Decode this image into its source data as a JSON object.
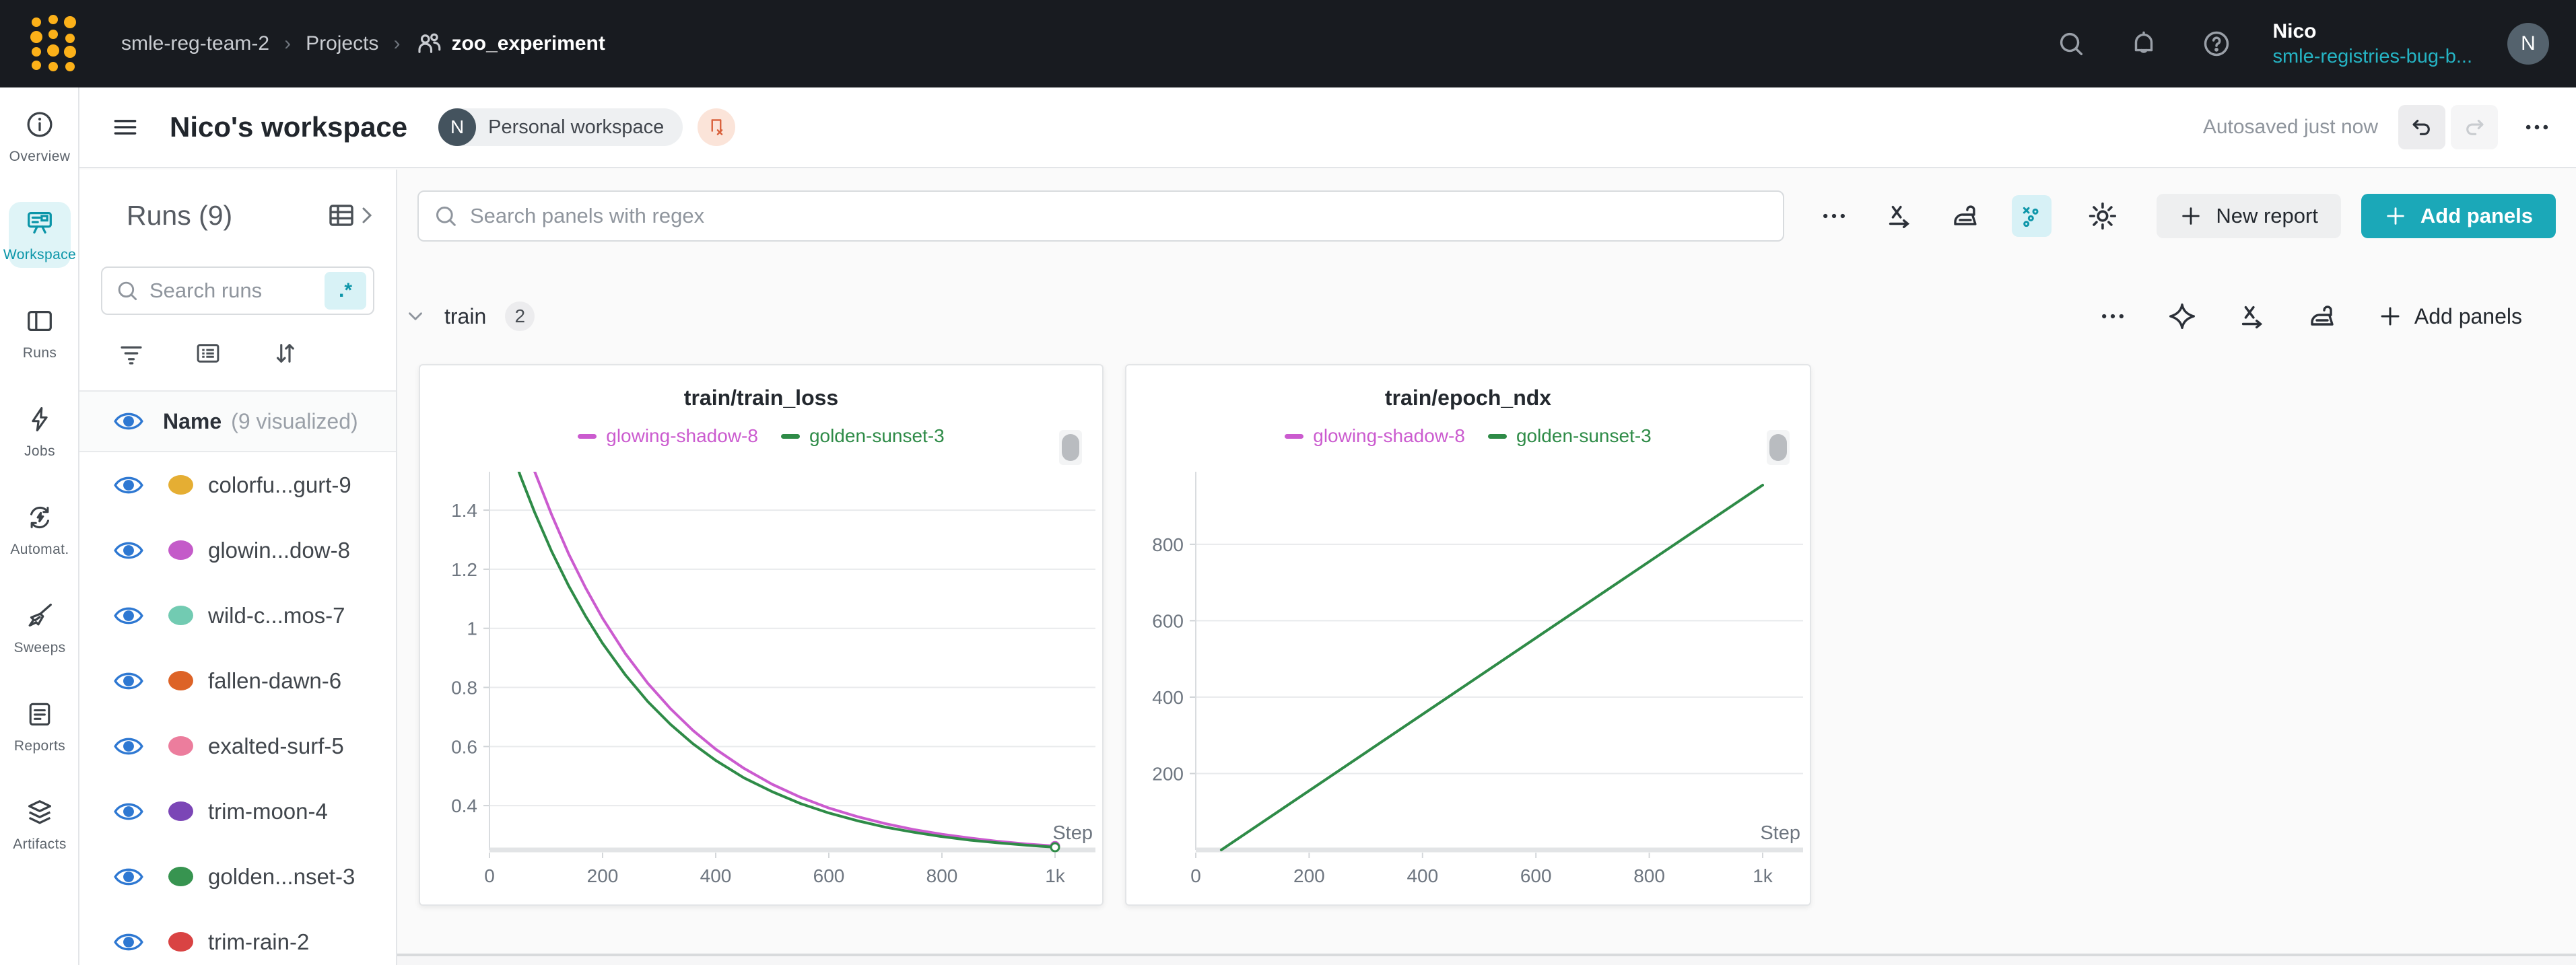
{
  "topbar": {
    "breadcrumb": [
      "smle-reg-team-2",
      "Projects",
      "zoo_experiment"
    ],
    "user_name": "Nico",
    "user_org": "smle-registries-bug-b...",
    "avatar_initial": "N"
  },
  "header": {
    "title": "Nico's workspace",
    "badge_initial": "N",
    "badge_label": "Personal workspace",
    "autosave_status": "Autosaved just now"
  },
  "nav": {
    "items": [
      {
        "key": "overview",
        "label": "Overview",
        "active": false
      },
      {
        "key": "workspace",
        "label": "Workspace",
        "active": true
      },
      {
        "key": "runs",
        "label": "Runs",
        "active": false
      },
      {
        "key": "jobs",
        "label": "Jobs",
        "active": false
      },
      {
        "key": "automations",
        "label": "Automat.",
        "active": false
      },
      {
        "key": "sweeps",
        "label": "Sweeps",
        "active": false
      },
      {
        "key": "reports",
        "label": "Reports",
        "active": false
      },
      {
        "key": "artifacts",
        "label": "Artifacts",
        "active": false
      }
    ]
  },
  "runs_panel": {
    "title": "Runs (9)",
    "search_placeholder": "Search runs",
    "regex_label": ".*",
    "header_name": "Name",
    "header_count": "(9 visualized)",
    "runs": [
      {
        "name": "colorfu...gurt-9",
        "color": "#e5ae33"
      },
      {
        "name": "glowin...dow-8",
        "color": "#c45bc9"
      },
      {
        "name": "wild-c...mos-7",
        "color": "#72cbb2"
      },
      {
        "name": "fallen-dawn-6",
        "color": "#dd6327"
      },
      {
        "name": "exalted-surf-5",
        "color": "#ec7d9d"
      },
      {
        "name": "trim-moon-4",
        "color": "#7b46b6"
      },
      {
        "name": "golden...nset-3",
        "color": "#379450"
      },
      {
        "name": "trim-rain-2",
        "color": "#d94343"
      }
    ]
  },
  "toolbar": {
    "search_placeholder": "Search panels with regex",
    "new_report_label": "New report",
    "add_panels_label": "Add panels"
  },
  "section": {
    "label": "train",
    "count": "2",
    "add_panels_label": "Add panels"
  },
  "panels": [
    {
      "title": "train/train_loss",
      "legend": [
        {
          "label": "glowing-shadow-8",
          "color": "#cb5bcf"
        },
        {
          "label": "golden-sunset-3",
          "color": "#2e8b47"
        }
      ]
    },
    {
      "title": "train/epoch_ndx",
      "legend": [
        {
          "label": "glowing-shadow-8",
          "color": "#cb5bcf"
        },
        {
          "label": "golden-sunset-3",
          "color": "#2e8b47"
        }
      ]
    }
  ],
  "chart_data": [
    {
      "type": "line",
      "title": "train/train_loss",
      "xlabel": "Step",
      "xlim": [
        0,
        1000
      ],
      "ylim": [
        0.25,
        1.53
      ],
      "x_ticks": [
        0,
        200,
        400,
        600,
        800,
        1000
      ],
      "x_tick_labels": [
        "0",
        "200",
        "400",
        "600",
        "800",
        "1k"
      ],
      "y_ticks": [
        0.4,
        0.6,
        0.8,
        1,
        1.2,
        1.4
      ],
      "y_tick_labels": [
        "0.4",
        "0.6",
        "0.8",
        "1",
        "1.2",
        "1.4"
      ],
      "grid": "horizontal",
      "legend_position": "top-center",
      "series": [
        {
          "name": "glowing-shadow-8",
          "color": "#cb5bcf",
          "end_marker": true,
          "points": [
            [
              30,
              1.817
            ],
            [
              55,
              1.666
            ],
            [
              80,
              1.53
            ],
            [
              110,
              1.384
            ],
            [
              140,
              1.252
            ],
            [
              170,
              1.137
            ],
            [
              200,
              1.034
            ],
            [
              240,
              0.915
            ],
            [
              280,
              0.814
            ],
            [
              320,
              0.728
            ],
            [
              360,
              0.654
            ],
            [
              400,
              0.591
            ],
            [
              450,
              0.526
            ],
            [
              500,
              0.472
            ],
            [
              550,
              0.428
            ],
            [
              600,
              0.392
            ],
            [
              650,
              0.363
            ],
            [
              700,
              0.339
            ],
            [
              750,
              0.319
            ],
            [
              800,
              0.303
            ],
            [
              850,
              0.29
            ],
            [
              900,
              0.279
            ],
            [
              950,
              0.27
            ],
            [
              1000,
              0.263
            ]
          ]
        },
        {
          "name": "golden-sunset-3",
          "color": "#2e8b47",
          "end_marker": true,
          "points": [
            [
              30,
              1.649
            ],
            [
              55,
              1.514
            ],
            [
              80,
              1.392
            ],
            [
              110,
              1.26
            ],
            [
              140,
              1.144
            ],
            [
              170,
              1.041
            ],
            [
              200,
              0.949
            ],
            [
              240,
              0.843
            ],
            [
              280,
              0.752
            ],
            [
              320,
              0.675
            ],
            [
              360,
              0.609
            ],
            [
              400,
              0.553
            ],
            [
              450,
              0.494
            ],
            [
              500,
              0.447
            ],
            [
              550,
              0.407
            ],
            [
              600,
              0.375
            ],
            [
              650,
              0.349
            ],
            [
              700,
              0.327
            ],
            [
              750,
              0.31
            ],
            [
              800,
              0.295
            ],
            [
              850,
              0.283
            ],
            [
              900,
              0.274
            ],
            [
              950,
              0.266
            ],
            [
              1000,
              0.259
            ]
          ]
        }
      ]
    },
    {
      "type": "line",
      "title": "train/epoch_ndx",
      "xlabel": "Step",
      "xlim": [
        0,
        1000
      ],
      "ylim": [
        0,
        990
      ],
      "x_ticks": [
        0,
        200,
        400,
        600,
        800,
        1000
      ],
      "x_tick_labels": [
        "0",
        "200",
        "400",
        "600",
        "800",
        "1k"
      ],
      "y_ticks": [
        200,
        400,
        600,
        800
      ],
      "y_tick_labels": [
        "200",
        "400",
        "600",
        "800"
      ],
      "grid": "horizontal",
      "legend_position": "top-center",
      "series": [
        {
          "name": "golden-sunset-3",
          "color": "#2e8b47",
          "end_marker": false,
          "points": [
            [
              45,
              0
            ],
            [
              1000,
              955
            ]
          ]
        }
      ]
    }
  ]
}
